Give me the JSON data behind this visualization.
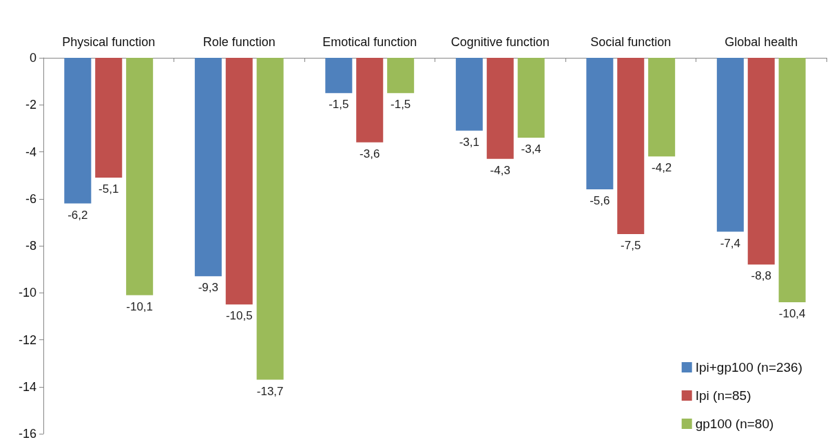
{
  "chart_data": {
    "type": "bar",
    "categories": [
      "Physical function",
      "Role function",
      "Emotical function",
      "Cognitive function",
      "Social function",
      "Global health"
    ],
    "series": [
      {
        "name": "Ipi+gp100 (n=236)",
        "color": "#4f81bd",
        "values": [
          -6.2,
          -9.3,
          -1.5,
          -3.1,
          -5.6,
          -7.4
        ],
        "value_labels": [
          "-6,2",
          "-9,3",
          "-1,5",
          "-3,1",
          "-5,6",
          "-7,4"
        ]
      },
      {
        "name": "Ipi (n=85)",
        "color": "#c0504d",
        "values": [
          -5.1,
          -10.5,
          -3.6,
          -4.3,
          -7.5,
          -8.8
        ],
        "value_labels": [
          "-5,1",
          "-10,5",
          "-3,6",
          "-4,3",
          "-7,5",
          "-8,8"
        ]
      },
      {
        "name": "gp100 (n=80)",
        "color": "#9bbb59",
        "values": [
          -10.1,
          -13.7,
          -1.5,
          -3.4,
          -4.2,
          -10.4
        ],
        "value_labels": [
          "-10,1",
          "-13,7",
          "-1,5",
          "-3,4",
          "-4,2",
          "-10,4"
        ]
      }
    ],
    "ylim": [
      -16,
      0
    ],
    "yticks": [
      0,
      -2,
      -4,
      -6,
      -8,
      -10,
      -12,
      -14,
      -16
    ],
    "grid": false,
    "legend": "bottom right"
  }
}
